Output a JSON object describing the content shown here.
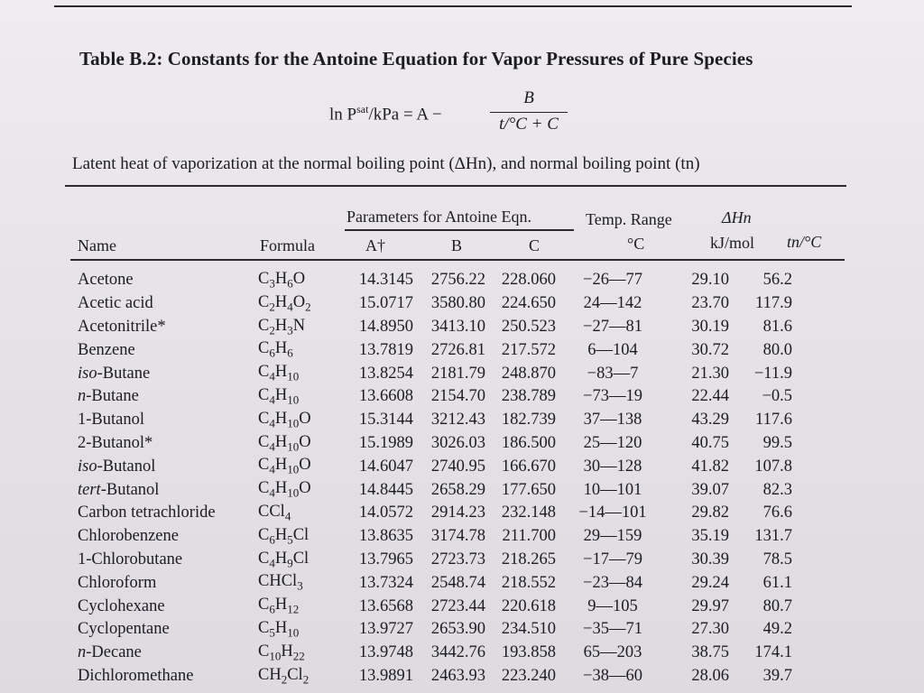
{
  "table": {
    "title": "Table B.2: Constants for the Antoine Equation for Vapor Pressures of Pure Species",
    "equation": {
      "lhs": "ln P",
      "lhs_sup": "sat",
      "lhs_rest": "/kPa = A −",
      "numerator": "B",
      "denominator": "t/°C + C"
    },
    "subtitle": "Latent heat of vaporization at the normal boiling point (ΔHn), and normal boiling point (tn)",
    "headers": {
      "group_antoine": "Parameters for Antoine Eqn.",
      "temp_range": "Temp. Range",
      "temp_unit": "°C",
      "dh": "ΔHn",
      "dh_unit": "kJ/mol",
      "tn": "tn/°C",
      "name": "Name",
      "formula": "Formula",
      "a": "A†",
      "b": "B",
      "c": "C"
    },
    "rows": [
      {
        "name": "Acetone",
        "formula": "C3H6O",
        "a": "14.3145",
        "b": "2756.22",
        "c": "228.060",
        "range": "−26—77",
        "dh": "29.10",
        "tn": "56.2"
      },
      {
        "name": "Acetic acid",
        "formula": "C2H4O2",
        "a": "15.0717",
        "b": "3580.80",
        "c": "224.650",
        "range": "24—142",
        "dh": "23.70",
        "tn": "117.9"
      },
      {
        "name": "Acetonitrile*",
        "formula": "C2H3N",
        "a": "14.8950",
        "b": "3413.10",
        "c": "250.523",
        "range": "−27—81",
        "dh": "30.19",
        "tn": "81.6"
      },
      {
        "name": "Benzene",
        "formula": "C6H6",
        "a": "13.7819",
        "b": "2726.81",
        "c": "217.572",
        "range": "6—104",
        "dh": "30.72",
        "tn": "80.0"
      },
      {
        "name": "iso-Butane",
        "formula": "C4H10",
        "a": "13.8254",
        "b": "2181.79",
        "c": "248.870",
        "range": "−83—7",
        "dh": "21.30",
        "tn": "−11.9"
      },
      {
        "name": "n-Butane",
        "formula": "C4H10",
        "a": "13.6608",
        "b": "2154.70",
        "c": "238.789",
        "range": "−73—19",
        "dh": "22.44",
        "tn": "−0.5"
      },
      {
        "name": "1-Butanol",
        "formula": "C4H10O",
        "a": "15.3144",
        "b": "3212.43",
        "c": "182.739",
        "range": "37—138",
        "dh": "43.29",
        "tn": "117.6"
      },
      {
        "name": "2-Butanol*",
        "formula": "C4H10O",
        "a": "15.1989",
        "b": "3026.03",
        "c": "186.500",
        "range": "25—120",
        "dh": "40.75",
        "tn": "99.5"
      },
      {
        "name": "iso-Butanol",
        "formula": "C4H10O",
        "a": "14.6047",
        "b": "2740.95",
        "c": "166.670",
        "range": "30—128",
        "dh": "41.82",
        "tn": "107.8"
      },
      {
        "name": "tert-Butanol",
        "formula": "C4H10O",
        "a": "14.8445",
        "b": "2658.29",
        "c": "177.650",
        "range": "10—101",
        "dh": "39.07",
        "tn": "82.3"
      },
      {
        "name": "Carbon tetrachloride",
        "formula": "CCl4",
        "a": "14.0572",
        "b": "2914.23",
        "c": "232.148",
        "range": "−14—101",
        "dh": "29.82",
        "tn": "76.6"
      },
      {
        "name": "Chlorobenzene",
        "formula": "C6H5Cl",
        "a": "13.8635",
        "b": "3174.78",
        "c": "211.700",
        "range": "29—159",
        "dh": "35.19",
        "tn": "131.7"
      },
      {
        "name": "1-Chlorobutane",
        "formula": "C4H9Cl",
        "a": "13.7965",
        "b": "2723.73",
        "c": "218.265",
        "range": "−17—79",
        "dh": "30.39",
        "tn": "78.5"
      },
      {
        "name": "Chloroform",
        "formula": "CHCl3",
        "a": "13.7324",
        "b": "2548.74",
        "c": "218.552",
        "range": "−23—84",
        "dh": "29.24",
        "tn": "61.1"
      },
      {
        "name": "Cyclohexane",
        "formula": "C6H12",
        "a": "13.6568",
        "b": "2723.44",
        "c": "220.618",
        "range": "9—105",
        "dh": "29.97",
        "tn": "80.7"
      },
      {
        "name": "Cyclopentane",
        "formula": "C5H10",
        "a": "13.9727",
        "b": "2653.90",
        "c": "234.510",
        "range": "−35—71",
        "dh": "27.30",
        "tn": "49.2"
      },
      {
        "name": "n-Decane",
        "formula": "C10H22",
        "a": "13.9748",
        "b": "3442.76",
        "c": "193.858",
        "range": "65—203",
        "dh": "38.75",
        "tn": "174.1"
      },
      {
        "name": "Dichloromethane",
        "formula": "CH2Cl2",
        "a": "13.9891",
        "b": "2463.93",
        "c": "223.240",
        "range": "−38—60",
        "dh": "28.06",
        "tn": "39.7"
      }
    ]
  }
}
